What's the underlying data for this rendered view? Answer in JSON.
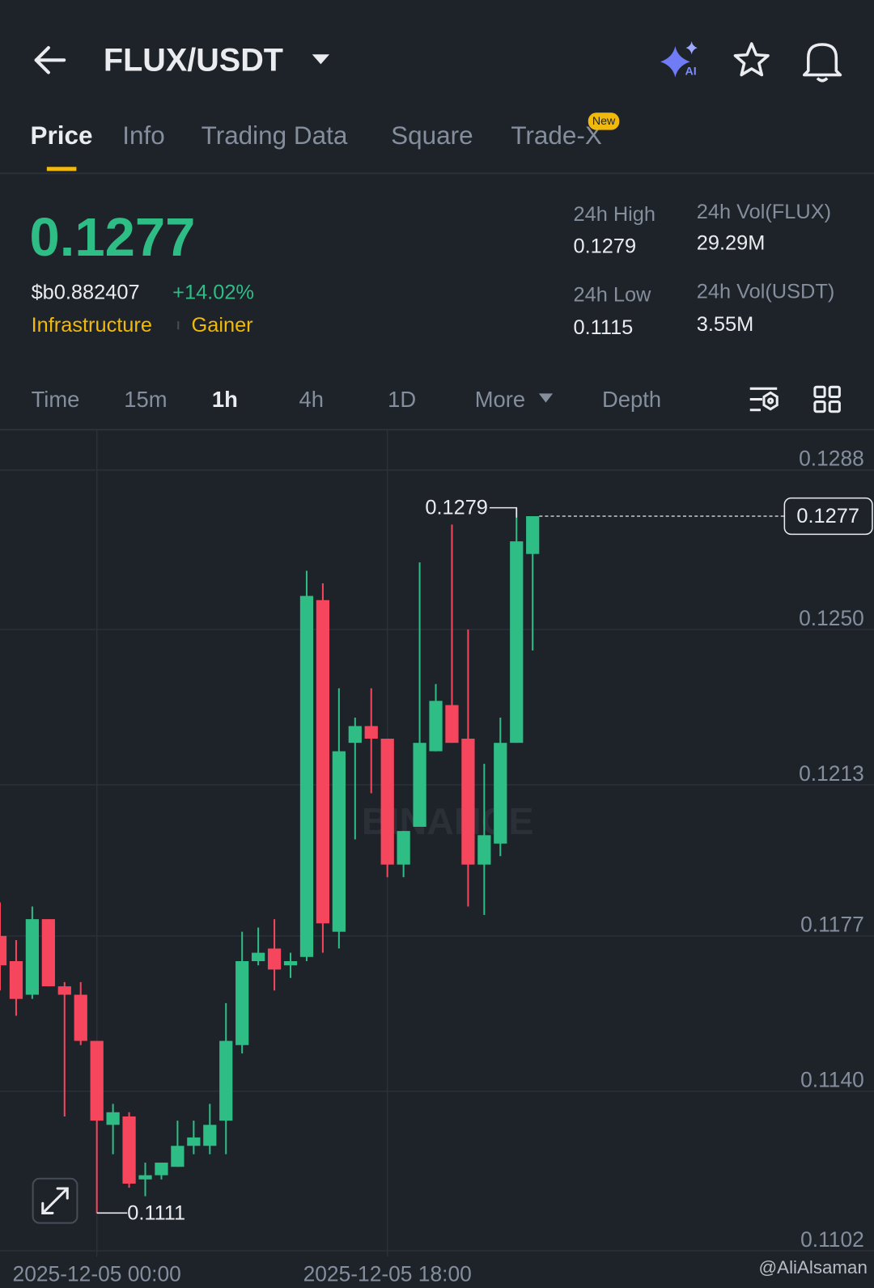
{
  "header": {
    "pair": "FLUX/USDT",
    "ai_icon_label": "AI"
  },
  "tabs": [
    "Price",
    "Info",
    "Trading Data",
    "Square",
    "Trade-X"
  ],
  "tab_badge": "New",
  "price": {
    "last": "0.1277",
    "fiat": "$b0.882407",
    "change": "+14.02%",
    "tags": [
      "Infrastructure",
      "Gainer"
    ]
  },
  "stats": [
    {
      "label": "24h High",
      "value": "0.1279"
    },
    {
      "label": "24h Vol(FLUX)",
      "value": "29.29M"
    },
    {
      "label": "24h Low",
      "value": "0.1115"
    },
    {
      "label": "24h Vol(USDT)",
      "value": "3.55M"
    }
  ],
  "intervals": [
    "Time",
    "15m",
    "1h",
    "4h",
    "1D",
    "More",
    "Depth"
  ],
  "active_interval": "1h",
  "chart_data": {
    "type": "candlestick",
    "watermark": "BINANCE",
    "credit": "@AliAlsaman",
    "categories": [
      null,
      null,
      null,
      null,
      null,
      null,
      "2025-12-05 00:00",
      null,
      null,
      null,
      null,
      null,
      null,
      null,
      null,
      null,
      null,
      null,
      null,
      null,
      null,
      null,
      null,
      null,
      "2025-12-05 18:00",
      null,
      null,
      null,
      null,
      null,
      null,
      null,
      null,
      null
    ],
    "open": [
      0.1177,
      0.1171,
      0.1163,
      0.1181,
      0.1165,
      0.1163,
      0.1152,
      0.1132,
      0.1134,
      0.1119,
      0.112,
      0.1122,
      0.1127,
      0.1127,
      0.1133,
      0.1151,
      0.1171,
      0.1174,
      0.117,
      0.1172,
      0.1257,
      0.1178,
      0.1223,
      0.1227,
      0.1224,
      0.1194,
      0.1203,
      0.1221,
      0.1232,
      0.1224,
      0.1194,
      0.1199,
      0.1223,
      0.1268
    ],
    "high": [
      0.1185,
      0.1176,
      0.1184,
      0.1181,
      0.1166,
      0.1166,
      0.1152,
      0.1137,
      0.1135,
      0.1123,
      0.1123,
      0.1133,
      0.1133,
      0.1137,
      0.1161,
      0.1178,
      0.1179,
      0.1181,
      0.1173,
      0.1264,
      0.1261,
      0.1236,
      0.1229,
      0.1236,
      0.1224,
      0.1202,
      0.1266,
      0.1237,
      0.1275,
      0.125,
      0.1218,
      0.1229,
      0.1279,
      0.1277
    ],
    "low": [
      0.1164,
      0.1158,
      0.1162,
      0.1165,
      0.1134,
      0.1151,
      0.1111,
      0.1125,
      0.1117,
      0.1115,
      0.1119,
      0.1122,
      0.1125,
      0.1125,
      0.1125,
      0.1149,
      0.117,
      0.1164,
      0.1167,
      0.1171,
      0.1173,
      0.1174,
      0.12,
      0.1211,
      0.1191,
      0.1191,
      0.1203,
      0.1221,
      0.1223,
      0.1184,
      0.1182,
      0.1196,
      0.1223,
      0.1245
    ],
    "close": [
      0.117,
      0.1162,
      0.1181,
      0.1165,
      0.1163,
      0.1152,
      0.1133,
      0.1135,
      0.1118,
      0.112,
      0.1123,
      0.1127,
      0.1129,
      0.1132,
      0.1152,
      0.1171,
      0.1173,
      0.1169,
      0.1171,
      0.1258,
      0.118,
      0.1221,
      0.1227,
      0.1224,
      0.1194,
      0.1202,
      0.1223,
      0.1233,
      0.1223,
      0.1194,
      0.1201,
      0.1223,
      0.1271,
      0.1277
    ],
    "up_color": "#2ebd85",
    "down_color": "#f6465d",
    "ylim": [
      0.1101,
      0.1298
    ],
    "yticks": [
      0.1102,
      {
        "value": 0.114,
        "label": "0.1140"
      },
      0.1177,
      0.1213,
      {
        "value": 0.125,
        "label": "0.1250"
      },
      0.1288
    ],
    "grid": true,
    "high_label": 0.1279,
    "low_label": 0.1111,
    "last_price": 0.1277
  }
}
